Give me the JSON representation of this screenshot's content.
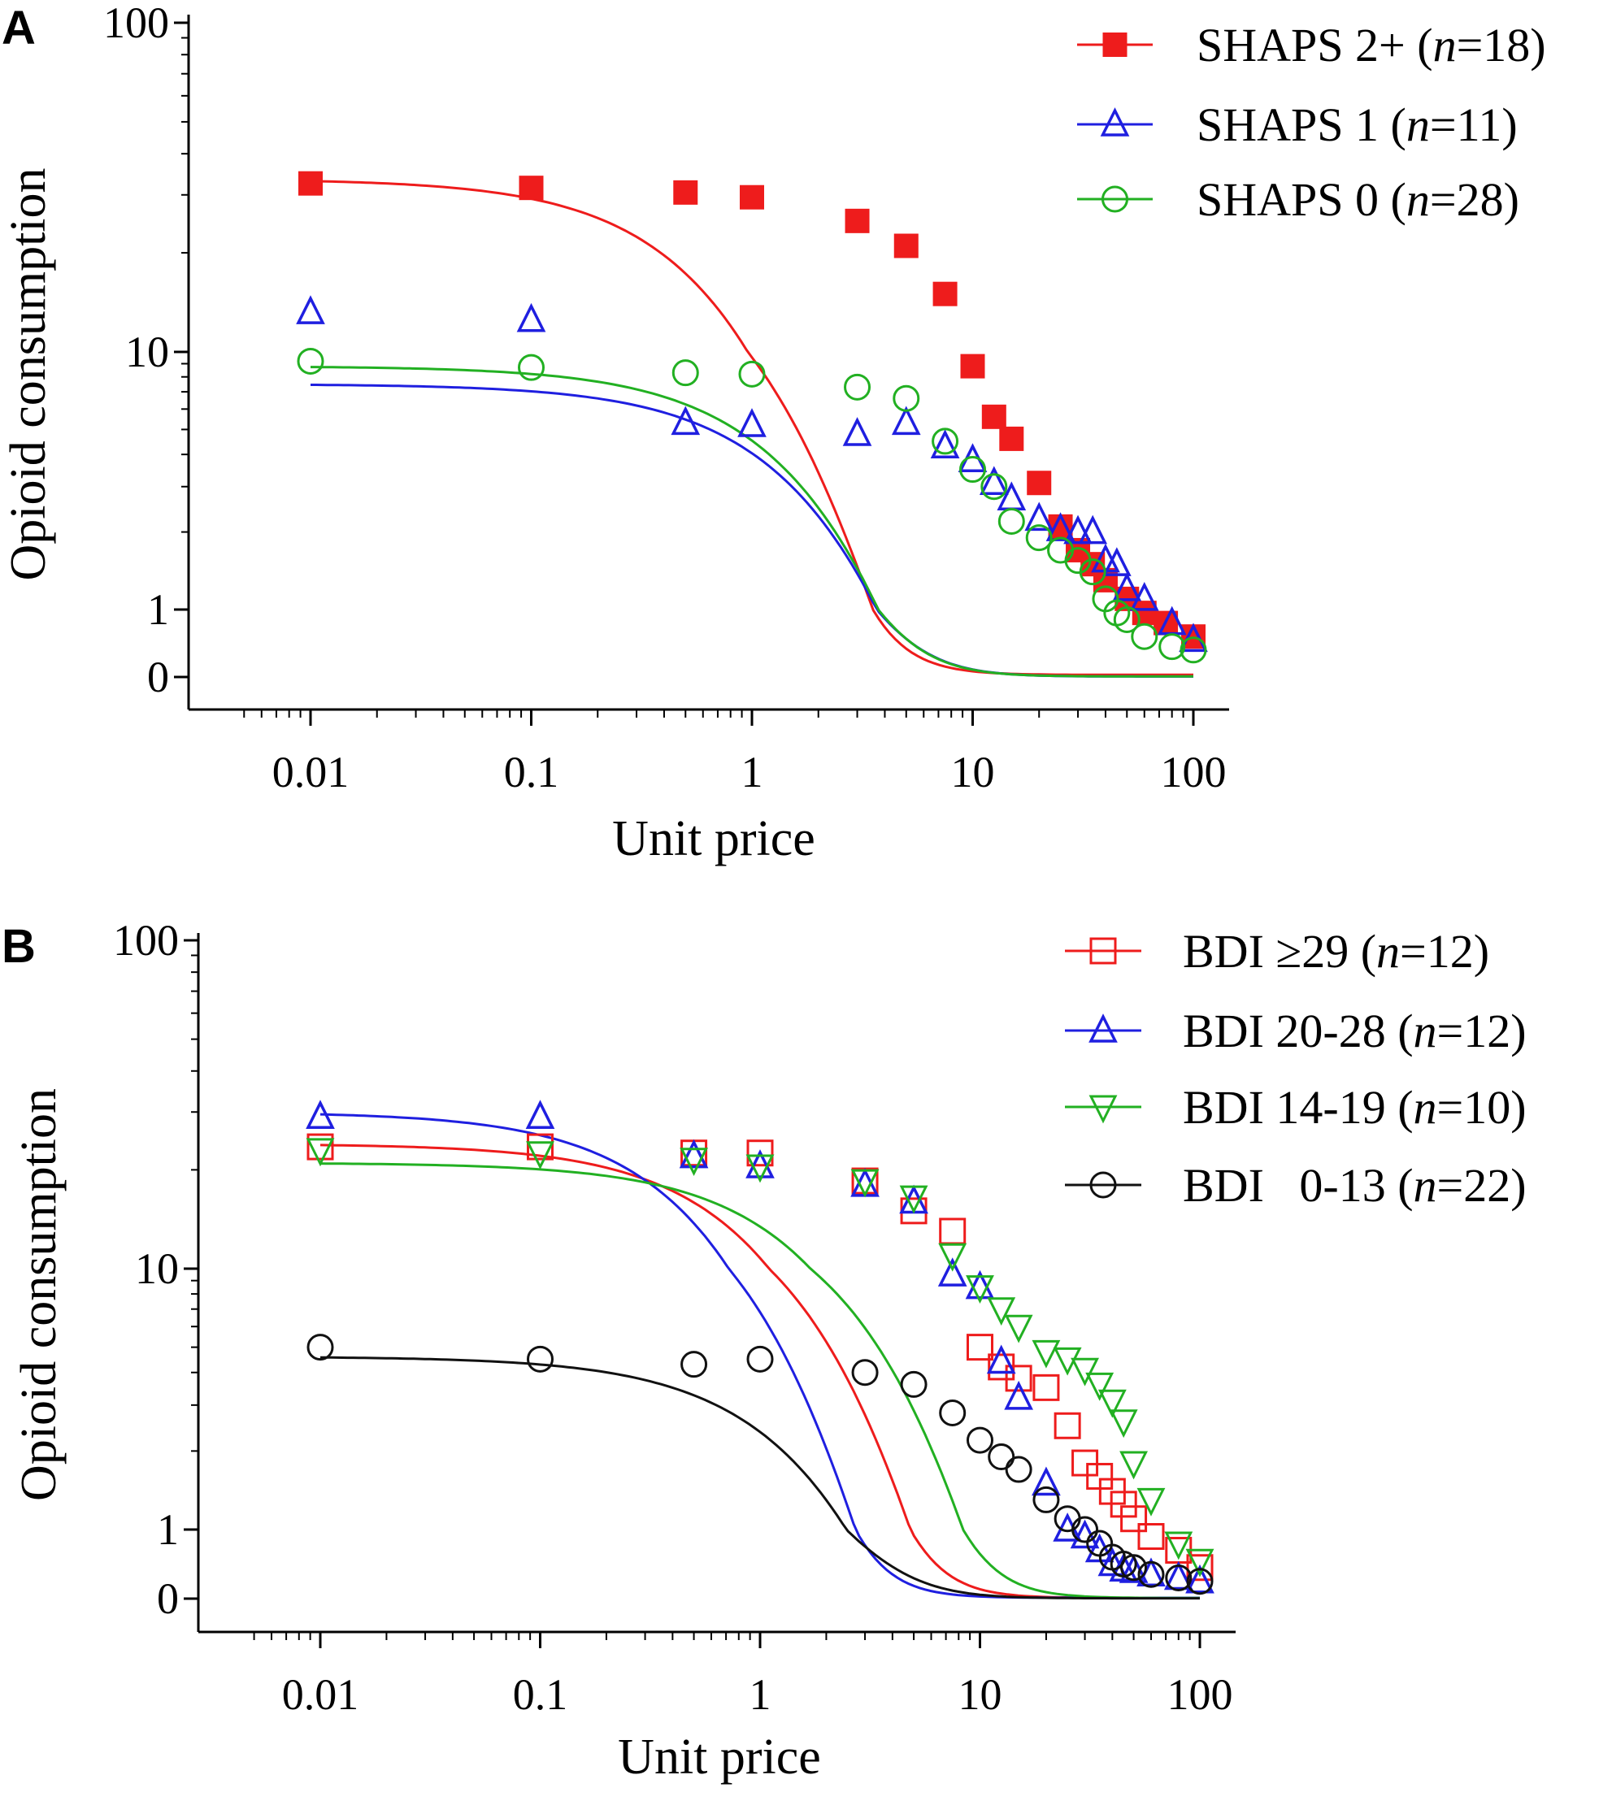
{
  "chart_data": [
    {
      "panel": "A",
      "type": "line",
      "xscale": "log",
      "xlabel": "Unit price",
      "ylabel": "Opioid consumption",
      "xlim": [
        0.004,
        150
      ],
      "ylim_label_ticks": [
        "100",
        "10",
        "1",
        "0"
      ],
      "yticks": [
        100,
        10,
        1,
        0
      ],
      "xticks": [
        0.01,
        0.1,
        1,
        10,
        100
      ],
      "xtick_labels": [
        "0.01",
        "0.1",
        "1",
        "10",
        "100"
      ],
      "legend_position": "top-right",
      "series": [
        {
          "name": "SHAPS 2+",
          "n_label": "(n=18)",
          "n_pre": "(",
          "n_sym": "n",
          "n_post": "=18)",
          "color": "#ee1c1c",
          "marker": "square-filled",
          "points": [
            [
              0.01,
              32.5
            ],
            [
              0.1,
              31.5
            ],
            [
              0.5,
              30.5
            ],
            [
              1,
              29.5
            ],
            [
              3,
              25
            ],
            [
              5,
              21
            ],
            [
              7.5,
              15
            ],
            [
              10,
              8.8
            ],
            [
              12.5,
              5.6
            ],
            [
              15,
              4.6
            ],
            [
              20,
              3.1
            ],
            [
              25,
              2.1
            ],
            [
              30,
              1.7
            ],
            [
              35,
              1.5
            ],
            [
              40,
              1.3
            ],
            [
              50,
              1.1
            ],
            [
              60,
              0.95
            ],
            [
              75,
              0.8
            ],
            [
              100,
              0.6
            ]
          ],
          "fit": {
            "q0": 33.5,
            "alpha": 0.006,
            "k": 3
          }
        },
        {
          "name": "SHAPS 1",
          "n_label": "(n=11)",
          "n_pre": "(",
          "n_sym": "n",
          "n_post": "=11)",
          "color": "#1f1fe0",
          "marker": "triangle-up-open",
          "points": [
            [
              0.01,
              13.2
            ],
            [
              0.1,
              12.5
            ],
            [
              0.5,
              5.3
            ],
            [
              1,
              5.2
            ],
            [
              3,
              4.8
            ],
            [
              5,
              5.3
            ],
            [
              7.5,
              4.3
            ],
            [
              10,
              3.8
            ],
            [
              12.5,
              3.1
            ],
            [
              15,
              2.7
            ],
            [
              20,
              2.25
            ],
            [
              25,
              2.05
            ],
            [
              30,
              2.0
            ],
            [
              35,
              2.0
            ],
            [
              40,
              1.55
            ],
            [
              45,
              1.5
            ],
            [
              50,
              1.2
            ],
            [
              60,
              1.1
            ],
            [
              80,
              0.8
            ],
            [
              100,
              0.55
            ]
          ],
          "fit": {
            "q0": 7.5,
            "alpha": 0.0125,
            "k": 3
          }
        },
        {
          "name": "SHAPS 0",
          "n_label": "(n=28)",
          "n_pre": "(",
          "n_sym": "n",
          "n_post": "=28)",
          "color": "#22b022",
          "marker": "circle-open",
          "points": [
            [
              0.01,
              9.2
            ],
            [
              0.1,
              8.7
            ],
            [
              0.5,
              8.3
            ],
            [
              1,
              8.2
            ],
            [
              3,
              7.3
            ],
            [
              5,
              6.6
            ],
            [
              7.5,
              4.5
            ],
            [
              10,
              3.5
            ],
            [
              12.5,
              3.0
            ],
            [
              15,
              2.2
            ],
            [
              20,
              1.9
            ],
            [
              25,
              1.7
            ],
            [
              30,
              1.55
            ],
            [
              35,
              1.4
            ],
            [
              40,
              1.1
            ],
            [
              45,
              0.95
            ],
            [
              50,
              0.85
            ],
            [
              60,
              0.6
            ],
            [
              80,
              0.45
            ],
            [
              100,
              0.4
            ]
          ],
          "fit": {
            "q0": 8.8,
            "alpha": 0.0115,
            "k": 3
          }
        }
      ]
    },
    {
      "panel": "B",
      "type": "line",
      "xscale": "log",
      "xlabel": "Unit price",
      "ylabel": "Opioid consumption",
      "xlim": [
        0.004,
        150
      ],
      "ylim_label_ticks": [
        "100",
        "10",
        "1",
        "0"
      ],
      "yticks": [
        100,
        10,
        1,
        0
      ],
      "xticks": [
        0.01,
        0.1,
        1,
        10,
        100
      ],
      "xtick_labels": [
        "0.01",
        "0.1",
        "1",
        "10",
        "100"
      ],
      "legend_position": "top-right",
      "series": [
        {
          "name": "BDI ≥29",
          "n_label": "(n=12)",
          "n_pre": "(",
          "n_sym": "n",
          "n_post": "=12)",
          "color": "#ee1c1c",
          "marker": "square-open",
          "points": [
            [
              0.01,
              23.5
            ],
            [
              0.1,
              23.5
            ],
            [
              0.5,
              22.5
            ],
            [
              1,
              22.5
            ],
            [
              3,
              18.5
            ],
            [
              5,
              15
            ],
            [
              7.5,
              13
            ],
            [
              10,
              5
            ],
            [
              12.5,
              4.2
            ],
            [
              15,
              3.8
            ],
            [
              20,
              3.5
            ],
            [
              25,
              2.5
            ],
            [
              30,
              1.8
            ],
            [
              35,
              1.6
            ],
            [
              40,
              1.4
            ],
            [
              45,
              1.25
            ],
            [
              50,
              1.1
            ],
            [
              60,
              0.9
            ],
            [
              80,
              0.7
            ],
            [
              100,
              0.45
            ]
          ],
          "fit": {
            "q0": 24,
            "alpha": 0.0045,
            "k": 3.4
          }
        },
        {
          "name": "BDI 20-28",
          "n_label": "(n=12)",
          "n_pre": "(",
          "n_sym": "n",
          "n_post": "=12)",
          "color": "#1f1fe0",
          "marker": "triangle-up-open",
          "points": [
            [
              0.01,
              29
            ],
            [
              0.1,
              29
            ],
            [
              0.5,
              22
            ],
            [
              1,
              20.5
            ],
            [
              3,
              18
            ],
            [
              5,
              16
            ],
            [
              7.5,
              9.5
            ],
            [
              10,
              8.5
            ],
            [
              12.5,
              4.4
            ],
            [
              15,
              3.2
            ],
            [
              20,
              1.5
            ],
            [
              25,
              1.0
            ],
            [
              30,
              0.9
            ],
            [
              35,
              0.7
            ],
            [
              40,
              0.5
            ],
            [
              45,
              0.42
            ],
            [
              50,
              0.4
            ],
            [
              60,
              0.35
            ],
            [
              80,
              0.3
            ],
            [
              100,
              0.25
            ]
          ],
          "fit": {
            "q0": 30,
            "alpha": 0.007,
            "k": 3.4
          }
        },
        {
          "name": "BDI 14-19",
          "n_label": "(n=10)",
          "n_pre": "(",
          "n_sym": "n",
          "n_post": "=10)",
          "color": "#22b022",
          "marker": "triangle-down-open",
          "points": [
            [
              0.01,
              23
            ],
            [
              0.1,
              22.5
            ],
            [
              0.5,
              21.5
            ],
            [
              1,
              20.5
            ],
            [
              3,
              18.5
            ],
            [
              5,
              16.5
            ],
            [
              7.5,
              11
            ],
            [
              10,
              8.5
            ],
            [
              12.5,
              7.0
            ],
            [
              15,
              6.0
            ],
            [
              20,
              4.8
            ],
            [
              25,
              4.5
            ],
            [
              30,
              4.1
            ],
            [
              35,
              3.6
            ],
            [
              40,
              3.1
            ],
            [
              45,
              2.6
            ],
            [
              50,
              1.8
            ],
            [
              60,
              1.3
            ],
            [
              80,
              0.8
            ],
            [
              100,
              0.55
            ]
          ],
          "fit": {
            "q0": 21,
            "alpha": 0.0028,
            "k": 3.4
          }
        },
        {
          "name": "BDI   0-13",
          "n_label": "(n=22)",
          "n_pre": "(",
          "n_sym": "n",
          "n_post": "=22)",
          "color": "#111111",
          "marker": "circle-open",
          "points": [
            [
              0.01,
              5.0
            ],
            [
              0.1,
              4.5
            ],
            [
              0.5,
              4.3
            ],
            [
              1,
              4.5
            ],
            [
              3,
              4.0
            ],
            [
              5,
              3.6
            ],
            [
              7.5,
              2.8
            ],
            [
              10,
              2.2
            ],
            [
              12.5,
              1.9
            ],
            [
              15,
              1.7
            ],
            [
              20,
              1.3
            ],
            [
              25,
              1.1
            ],
            [
              30,
              1.0
            ],
            [
              35,
              0.8
            ],
            [
              40,
              0.6
            ],
            [
              45,
              0.5
            ],
            [
              50,
              0.45
            ],
            [
              60,
              0.35
            ],
            [
              80,
              0.3
            ],
            [
              100,
              0.25
            ]
          ],
          "fit": {
            "q0": 4.6,
            "alpha": 0.022,
            "k": 3
          }
        }
      ]
    }
  ]
}
